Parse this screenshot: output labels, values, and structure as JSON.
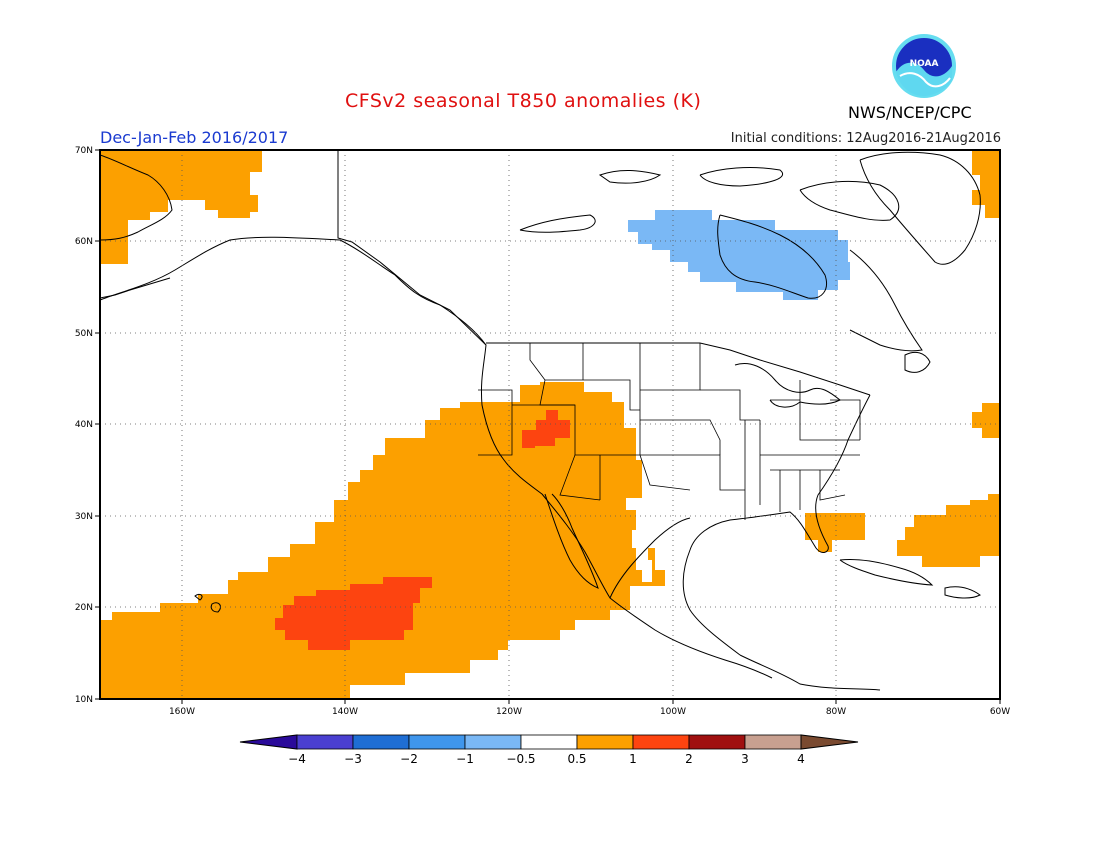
{
  "header": {
    "title": "CFSv2 seasonal T850 anomalies (K)",
    "season": "Dec-Jan-Feb 2016/2017",
    "initial_conditions": "Initial conditions: 12Aug2016-21Aug2016",
    "agency": "NWS/NCEP/CPC",
    "logo_text": "NOAA"
  },
  "map": {
    "lat_labels": [
      "70N",
      "60N",
      "50N",
      "40N",
      "30N",
      "20N",
      "10N"
    ],
    "lon_labels": [
      "160W",
      "140W",
      "120W",
      "100W",
      "80W",
      "60W"
    ],
    "extent": {
      "lon": [
        -170,
        -60
      ],
      "lat": [
        10,
        70
      ]
    }
  },
  "colorbar": {
    "labels": [
      "-4",
      "-3",
      "-2",
      "-1",
      "-0.5",
      "0.5",
      "1",
      "2",
      "3",
      "4"
    ],
    "colors": [
      "#2a0a9a",
      "#4a3fd0",
      "#1f6ed4",
      "#3f96ec",
      "#7ab8f5",
      "#ffffff",
      "#fca000",
      "#fd4410",
      "#a01010",
      "#c8a090",
      "#7a4a30"
    ]
  },
  "colors": {
    "anom_0p5_1": "#fca000",
    "anom_1_2": "#fd4410",
    "anom_neg_0p5_neg_1": "#7ab8f5"
  }
}
